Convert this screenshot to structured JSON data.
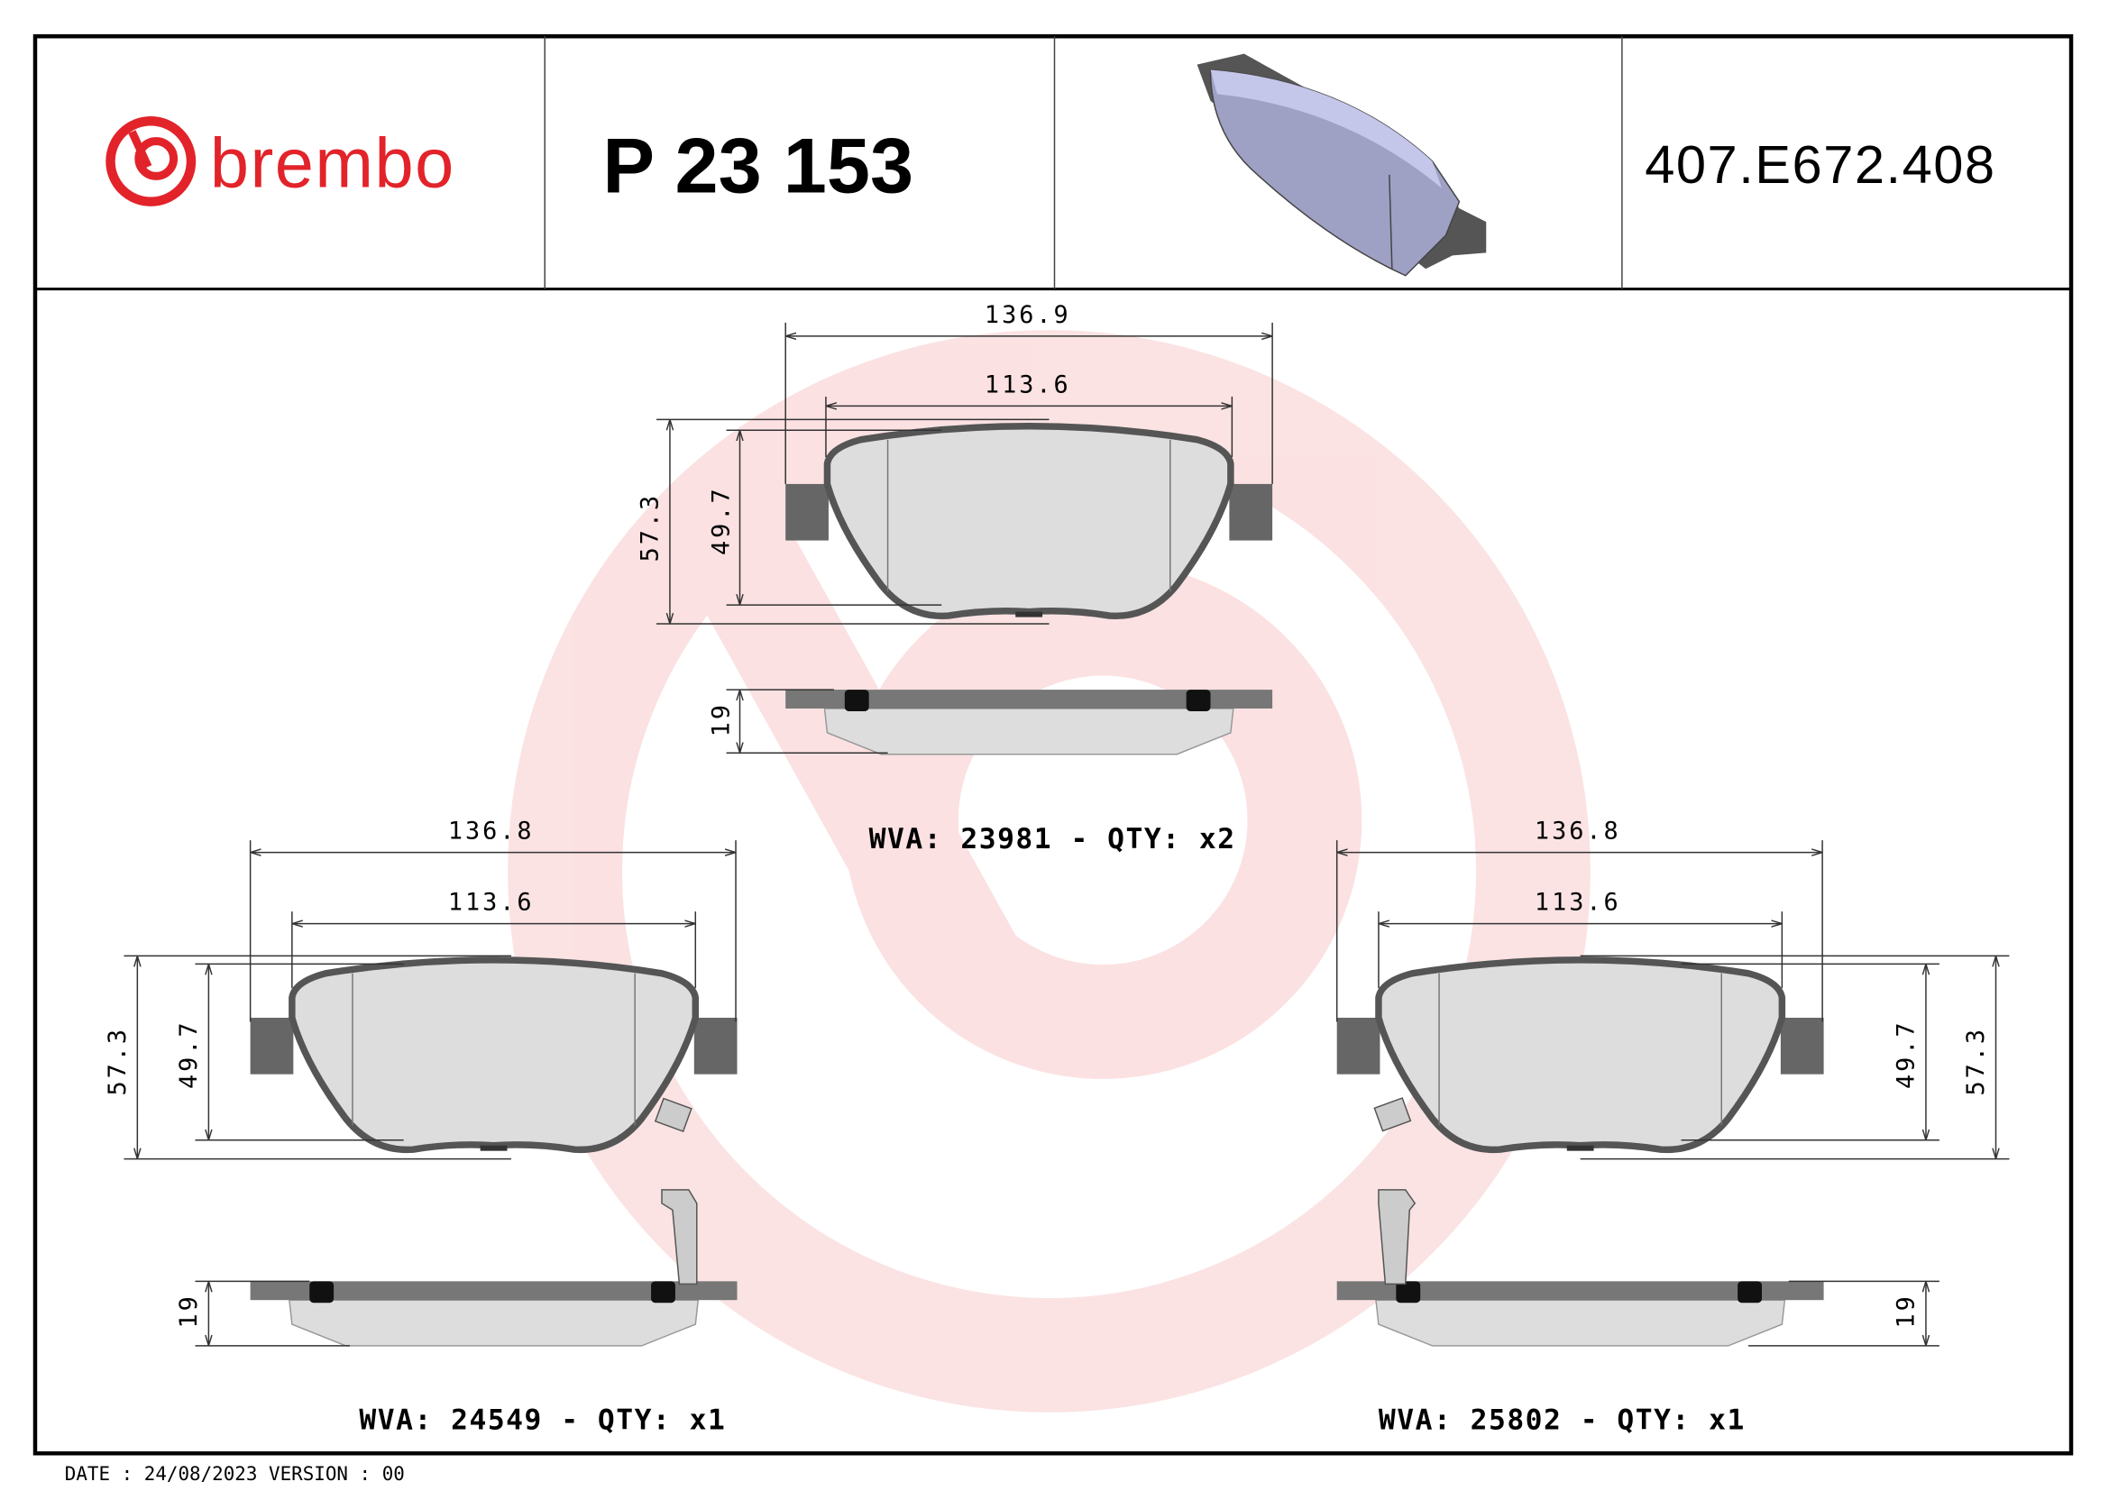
{
  "header": {
    "brand": "brembo",
    "part_number": "P 23 153",
    "reference_code": "407.E672.408"
  },
  "colors": {
    "brand_red": "#e2232a",
    "pad_3d": "#9ea0c4"
  },
  "pads": [
    {
      "width_outer": "136.9",
      "width_inner": "113.6",
      "height_outer": "57.3",
      "height_inner": "49.7",
      "thickness": "19",
      "label": "WVA: 23981 - QTY: x2"
    },
    {
      "width_outer": "136.8",
      "width_inner": "113.6",
      "height_outer": "57.3",
      "height_inner": "49.7",
      "thickness": "19",
      "label": "WVA: 24549 - QTY: x1"
    },
    {
      "width_outer": "136.8",
      "width_inner": "113.6",
      "height_outer": "49.7",
      "height_inner": "57.3",
      "thickness": "19",
      "label": "WVA: 25802 - QTY: x1"
    }
  ],
  "footer": {
    "text": "DATE : 24/08/2023 VERSION : 00"
  }
}
